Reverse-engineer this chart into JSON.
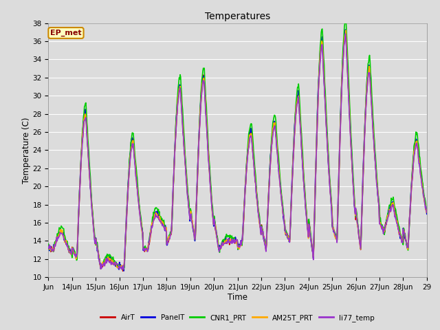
{
  "title": "Temperatures",
  "xlabel": "Time",
  "ylabel": "Temperature (C)",
  "ylim": [
    10,
    38
  ],
  "xlim": [
    0,
    16
  ],
  "bg_color": "#dcdcdc",
  "plot_bg_color": "#dcdcdc",
  "annotation_text": "EP_met",
  "annotation_bg": "#ffffc0",
  "annotation_border": "#cc8800",
  "annotation_text_color": "#880000",
  "xtick_labels": [
    "Jun",
    "14Jun",
    "15Jun",
    "16Jun",
    "17Jun",
    "18Jun",
    "19Jun",
    "20Jun",
    "21Jun",
    "22Jun",
    "23Jun",
    "24Jun",
    "25Jun",
    "26Jun",
    "27Jun",
    "28Jun",
    "29"
  ],
  "series_names": [
    "AirT",
    "PanelT",
    "CNR1_PRT",
    "AM25T_PRT",
    "li77_temp"
  ],
  "series_colors": [
    "#cc0000",
    "#0000dd",
    "#00cc00",
    "#ffaa00",
    "#9933cc"
  ],
  "series_lw": [
    1.2,
    1.2,
    1.2,
    1.2,
    1.2
  ],
  "yticks": [
    10,
    12,
    14,
    16,
    18,
    20,
    22,
    24,
    26,
    28,
    30,
    32,
    34,
    36,
    38
  ],
  "grid_color": "#ffffff",
  "daily_max": [
    15,
    28,
    12,
    25,
    17,
    31,
    32,
    14,
    26,
    27,
    30,
    36,
    37,
    33,
    18,
    25,
    26
  ],
  "daily_min": [
    13,
    12,
    11,
    11,
    13,
    15,
    14,
    13,
    14,
    13,
    14,
    12,
    14,
    13,
    15,
    13,
    16
  ]
}
